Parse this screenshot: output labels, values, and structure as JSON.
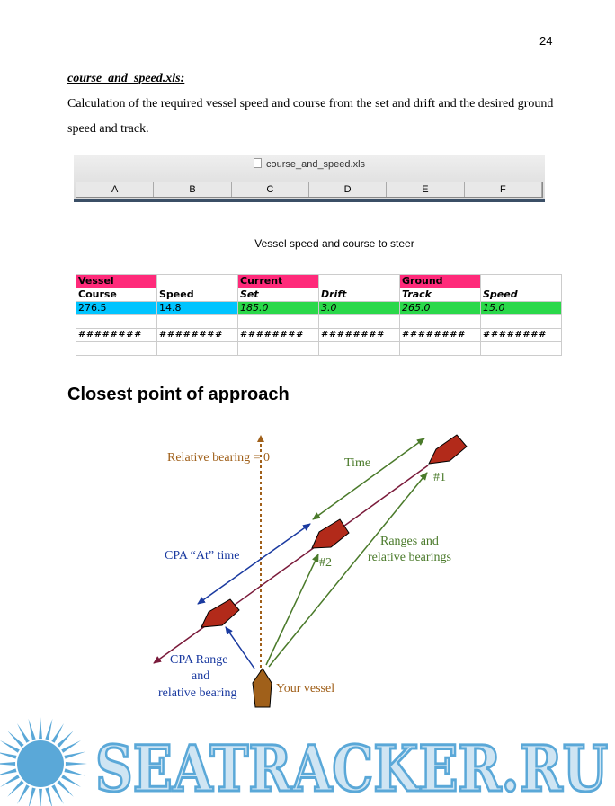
{
  "page_number": "24",
  "section": {
    "filename": "course_and_speed.xls:",
    "description": "Calculation of the required vessel speed and course from the set and drift and the desired ground speed and track."
  },
  "spreadsheet": {
    "window_title": "course_and_speed.xls",
    "file_icon": "document-icon",
    "columns": [
      "A",
      "B",
      "C",
      "D",
      "E",
      "F"
    ],
    "title": "Vessel speed and course to steer",
    "group_row": [
      "Vessel",
      "",
      "Current",
      "",
      "Ground",
      ""
    ],
    "header_row": [
      "Course",
      "Speed",
      "Set",
      "Drift",
      "Track",
      "Speed"
    ],
    "value_row": [
      "276.5",
      "14.8",
      "185.0",
      "3.0",
      "265.0",
      "15.0"
    ],
    "hash_row": [
      "########",
      "########",
      "########",
      "########",
      "########",
      "########"
    ],
    "colors": {
      "group": "#ff2a7a",
      "output": "#00c4ff",
      "input": "#2ad84a"
    }
  },
  "heading": "Closest point of approach",
  "diagram": {
    "relative_bearing": "Relative bearing = 0",
    "time": "Time",
    "marker_1": "#1",
    "marker_2": "#2",
    "ranges_line1": "Ranges and",
    "ranges_line2": "relative bearings",
    "cpa_at_time": "CPA “At” time",
    "cpa_range_line1": "CPA Range",
    "cpa_range_line2": "and",
    "cpa_range_line3": "relative bearing",
    "your_vessel": "Your vessel",
    "colors": {
      "vessel_red": "#b22a1a",
      "own_vessel": "#a0601a",
      "green": "#4a7a2a",
      "blue": "#1a3aa0",
      "track": "#7a1a3a",
      "bearing": "#a0601a"
    }
  },
  "watermark": {
    "text": "SEATRACKER.RU",
    "color": "#5aa8d8"
  }
}
